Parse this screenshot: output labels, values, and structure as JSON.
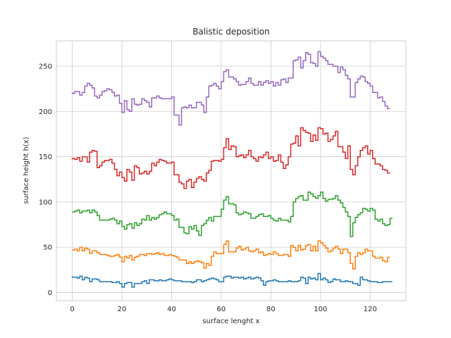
{
  "chart_data": {
    "type": "line",
    "drawstyle": "steps",
    "title": "Balistic deposition",
    "xlabel": "surface lenght x",
    "ylabel": "surface height h(x)",
    "xlim": [
      -6.4,
      134.4
    ],
    "ylim": [
      -9,
      278
    ],
    "xticks": [
      0,
      20,
      40,
      60,
      80,
      100,
      120
    ],
    "yticks": [
      0,
      50,
      100,
      150,
      200,
      250
    ],
    "grid": true,
    "colors": [
      "#1f77b4",
      "#ff7f0e",
      "#2ca02c",
      "#d62728",
      "#9467bd"
    ],
    "series": [
      {
        "values": [
          18,
          17,
          17,
          16,
          18,
          14,
          17,
          16,
          12,
          15,
          15,
          14,
          12,
          12,
          12,
          12,
          12,
          11,
          11,
          12,
          10,
          6,
          10,
          11,
          11,
          6,
          10,
          10,
          10,
          12,
          13,
          10,
          14,
          14,
          13,
          13,
          14,
          13,
          13,
          14,
          15,
          14,
          13,
          13,
          13,
          12,
          12,
          12,
          12,
          11,
          12,
          14,
          14,
          12,
          13,
          14,
          15,
          16,
          15,
          14,
          12,
          12,
          17,
          18,
          18,
          16,
          17,
          17,
          16,
          17,
          15,
          16,
          17,
          15,
          16,
          17,
          16,
          13,
          8,
          12,
          13,
          13,
          14,
          13,
          12,
          12,
          12,
          12,
          13,
          12,
          12,
          12,
          13,
          17,
          16,
          10,
          17,
          15,
          16,
          14,
          21,
          14,
          16,
          14,
          11,
          12,
          15,
          14,
          14,
          12,
          12,
          13,
          12,
          12,
          10,
          10,
          8,
          17,
          14,
          14,
          13,
          12,
          12,
          12,
          11,
          11,
          12,
          12,
          12,
          12
        ]
      },
      {
        "values": [
          47,
          47,
          48,
          46,
          50,
          46,
          49,
          48,
          43,
          46,
          46,
          44,
          42,
          42,
          42,
          41,
          40,
          40,
          41,
          42,
          39,
          34,
          40,
          38,
          41,
          36,
          39,
          40,
          42,
          42,
          41,
          43,
          43,
          42,
          43,
          44,
          42,
          43,
          41,
          41,
          42,
          41,
          40,
          39,
          36,
          36,
          36,
          32,
          34,
          32,
          34,
          35,
          34,
          33,
          27,
          32,
          30,
          40,
          45,
          43,
          43,
          43,
          53,
          57,
          45,
          45,
          45,
          49,
          51,
          47,
          48,
          50,
          46,
          45,
          46,
          48,
          44,
          45,
          41,
          42,
          43,
          42,
          45,
          43,
          41,
          41,
          42,
          42,
          40,
          52,
          50,
          46,
          52,
          47,
          48,
          52,
          53,
          46,
          51,
          46,
          57,
          55,
          52,
          49,
          45,
          46,
          49,
          51,
          48,
          43,
          48,
          48,
          44,
          32,
          26,
          40,
          44,
          42,
          44,
          48,
          46,
          46,
          40,
          38,
          38,
          39,
          35,
          34,
          39
        ]
      },
      {
        "values": [
          89,
          89,
          90,
          91,
          88,
          90,
          90,
          91,
          88,
          91,
          89,
          85,
          80,
          80,
          80,
          80,
          81,
          82,
          80,
          76,
          79,
          73,
          70,
          75,
          76,
          71,
          77,
          74,
          76,
          81,
          80,
          85,
          80,
          83,
          81,
          83,
          86,
          87,
          89,
          87,
          87,
          85,
          80,
          81,
          72,
          72,
          66,
          65,
          73,
          70,
          74,
          68,
          63,
          74,
          76,
          80,
          83,
          79,
          84,
          84,
          84,
          92,
          102,
          106,
          98,
          98,
          97,
          88,
          86,
          87,
          89,
          88,
          87,
          82,
          82,
          84,
          86,
          87,
          84,
          84,
          85,
          82,
          80,
          79,
          82,
          80,
          80,
          80,
          78,
          84,
          100,
          104,
          106,
          107,
          102,
          102,
          111,
          109,
          106,
          104,
          107,
          111,
          104,
          101,
          103,
          103,
          104,
          107,
          102,
          99,
          94,
          89,
          84,
          62,
          77,
          83,
          86,
          88,
          93,
          92,
          90,
          93,
          91,
          81,
          79,
          81,
          76,
          74,
          75,
          82
        ]
      },
      {
        "values": [
          147,
          148,
          147,
          149,
          145,
          150,
          150,
          144,
          155,
          157,
          156,
          138,
          140,
          144,
          146,
          146,
          147,
          143,
          136,
          129,
          133,
          127,
          123,
          136,
          133,
          124,
          140,
          138,
          131,
          132,
          134,
          131,
          134,
          143,
          140,
          144,
          147,
          146,
          145,
          143,
          143,
          144,
          130,
          130,
          122,
          120,
          115,
          123,
          125,
          116,
          122,
          126,
          128,
          125,
          123,
          132,
          135,
          145,
          146,
          146,
          145,
          147,
          160,
          170,
          158,
          162,
          161,
          150,
          151,
          152,
          149,
          152,
          157,
          150,
          148,
          145,
          150,
          149,
          152,
          155,
          148,
          150,
          145,
          146,
          152,
          144,
          137,
          141,
          150,
          164,
          165,
          173,
          162,
          182,
          179,
          177,
          176,
          167,
          174,
          168,
          182,
          181,
          175,
          176,
          167,
          169,
          173,
          178,
          161,
          161,
          155,
          148,
          162,
          136,
          130,
          140,
          150,
          157,
          160,
          162,
          153,
          157,
          148,
          142,
          142,
          140,
          136,
          135,
          132
        ]
      },
      {
        "values": [
          221,
          220,
          222,
          222,
          218,
          221,
          228,
          231,
          229,
          226,
          217,
          215,
          218,
          222,
          223,
          225,
          224,
          221,
          217,
          218,
          209,
          199,
          212,
          202,
          200,
          214,
          208,
          207,
          208,
          214,
          212,
          210,
          205,
          215,
          215,
          217,
          215,
          214,
          214,
          214,
          214,
          216,
          196,
          196,
          185,
          204,
          205,
          204,
          207,
          204,
          204,
          210,
          210,
          207,
          199,
          216,
          228,
          229,
          231,
          228,
          225,
          233,
          244,
          246,
          238,
          238,
          236,
          233,
          229,
          230,
          230,
          233,
          237,
          231,
          229,
          229,
          233,
          229,
          232,
          234,
          231,
          233,
          228,
          232,
          229,
          235,
          236,
          232,
          237,
          237,
          256,
          257,
          260,
          248,
          256,
          265,
          263,
          254,
          253,
          250,
          266,
          261,
          259,
          256,
          252,
          252,
          250,
          250,
          243,
          249,
          246,
          240,
          236,
          216,
          216,
          232,
          236,
          239,
          238,
          233,
          231,
          228,
          221,
          221,
          215,
          216,
          211,
          206,
          203
        ]
      }
    ]
  }
}
